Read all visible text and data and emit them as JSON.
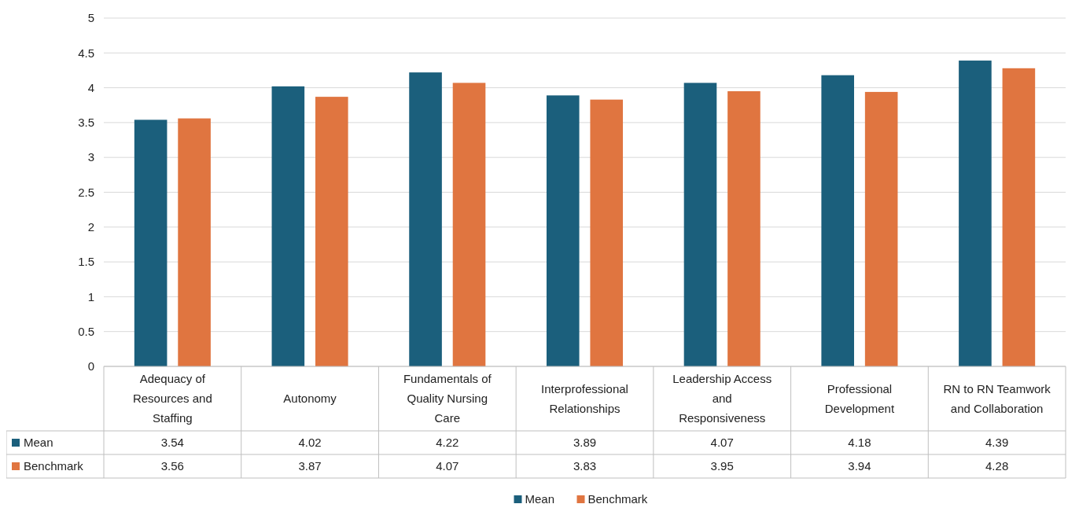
{
  "chart_data": {
    "type": "bar",
    "categories": [
      "Adequacy of Resources and Staffing",
      "Autonomy",
      "Fundamentals of Quality Nursing Care",
      "Interprofessional Relationships",
      "Leadership Access and Responsiveness",
      "Professional Development",
      "RN to RN Teamwork and Collaboration"
    ],
    "series": [
      {
        "name": "Mean",
        "color": "#1b5f7c",
        "values": [
          3.54,
          4.02,
          4.22,
          3.89,
          4.07,
          4.18,
          4.39
        ]
      },
      {
        "name": "Benchmark",
        "color": "#e07540",
        "values": [
          3.56,
          3.87,
          4.07,
          3.83,
          3.95,
          3.94,
          4.28
        ]
      }
    ],
    "ylim": [
      0,
      5
    ],
    "yticks": [
      0,
      0.5,
      1,
      1.5,
      2,
      2.5,
      3,
      3.5,
      4,
      4.5,
      5
    ],
    "grid": "y",
    "legend": "bottom",
    "data_labels": true
  }
}
